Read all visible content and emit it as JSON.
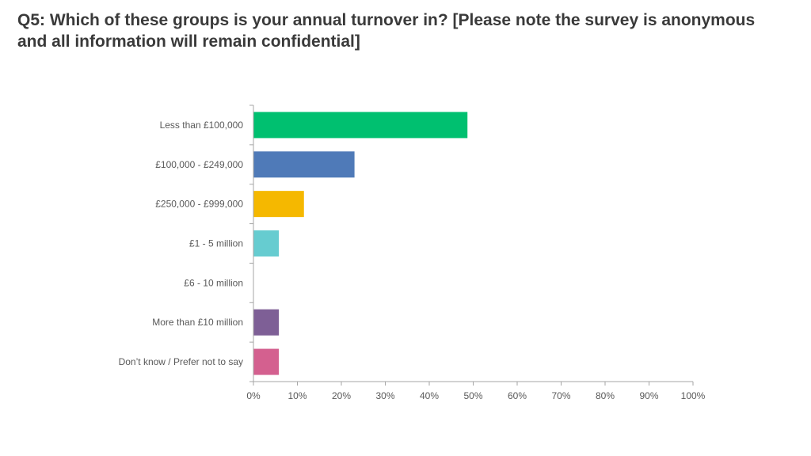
{
  "page": {
    "title": "Q5: Which of these groups is your annual turnover in? [Please note the survey is anonymous and all information will remain confidential]"
  },
  "chart_data": {
    "type": "bar",
    "orientation": "horizontal",
    "title": "",
    "xlabel": "",
    "ylabel": "",
    "categories": [
      "Less than £100,000",
      "£100,000 - £249,000",
      "£250,000 - £999,000",
      "£1 - 5 million",
      "£6 - 10 million",
      "More than £10 million",
      "Don’t know / Prefer not to say"
    ],
    "values": [
      48.6,
      22.9,
      11.4,
      5.7,
      0,
      5.7,
      5.7
    ],
    "colors": [
      "#00c070",
      "#4f7ab8",
      "#f5b800",
      "#66ccd0",
      "#cccccc",
      "#7e5f96",
      "#d4608f"
    ],
    "xlim": [
      0,
      100
    ],
    "xticks": [
      0,
      10,
      20,
      30,
      40,
      50,
      60,
      70,
      80,
      90,
      100
    ],
    "xtick_labels": [
      "0%",
      "10%",
      "20%",
      "30%",
      "40%",
      "50%",
      "60%",
      "70%",
      "80%",
      "90%",
      "100%"
    ],
    "grid": false,
    "legend": "none"
  }
}
